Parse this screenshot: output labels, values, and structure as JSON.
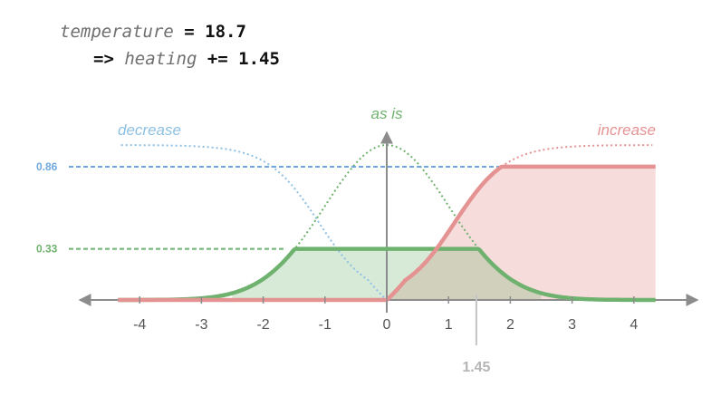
{
  "code": {
    "line1": {
      "var": "temperature",
      "op": " = ",
      "value": "18.7"
    },
    "line2": {
      "arrow": "=> ",
      "var": "heating",
      "op": " += ",
      "value": "1.45"
    }
  },
  "chart_data": {
    "type": "line",
    "x_ticks": [
      -4,
      -3,
      -2,
      -1,
      0,
      1,
      2,
      3,
      4
    ],
    "xlim": [
      -4.35,
      4.35
    ],
    "ylim": [
      0,
      1
    ],
    "grid": false,
    "legend": "none",
    "series": [
      {
        "name": "decrease",
        "color": "#8ec0e4",
        "x": [
          -4.3,
          -2.5,
          -2.2,
          -2,
          -1.5,
          -1,
          -0.6,
          -0.3,
          0
        ],
        "y": [
          1.0,
          0.93,
          0.89,
          0.84,
          0.62,
          0.36,
          0.16,
          0.03,
          0.0
        ]
      },
      {
        "name": "as is",
        "color": "#6fb26f",
        "x": [
          -2.5,
          -2,
          -1.5,
          -1,
          -0.5,
          0,
          0.5,
          1,
          1.5,
          2,
          2.5
        ],
        "y": [
          0.0,
          0.07,
          0.3,
          0.62,
          0.9,
          1.0,
          0.9,
          0.62,
          0.3,
          0.07,
          0.0
        ]
      },
      {
        "name": "increase",
        "color": "#e59293",
        "x": [
          0,
          0.3,
          0.6,
          1,
          1.5,
          2,
          2.2,
          2.5,
          4.3
        ],
        "y": [
          0.0,
          0.03,
          0.16,
          0.36,
          0.62,
          0.84,
          0.89,
          0.93,
          1.0
        ]
      }
    ],
    "activation": {
      "decrease": 0,
      "as_is": 0.33,
      "increase": 0.86
    },
    "activation_labels": [
      "0.86",
      "0.33"
    ],
    "output_marker": {
      "x": 1.45,
      "label": "1.45"
    },
    "series_labels": [
      "decrease",
      "as is",
      "increase"
    ]
  }
}
